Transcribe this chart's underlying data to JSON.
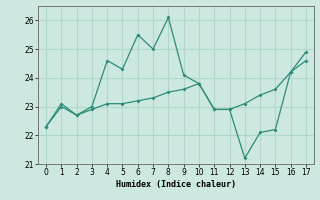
{
  "xlabel": "Humidex (Indice chaleur)",
  "x": [
    0,
    1,
    2,
    3,
    4,
    5,
    6,
    7,
    8,
    9,
    10,
    11,
    12,
    13,
    14,
    15,
    16,
    17
  ],
  "line1": [
    22.3,
    23.1,
    22.7,
    23.0,
    24.6,
    24.3,
    25.5,
    25.0,
    26.1,
    24.1,
    23.8,
    22.9,
    22.9,
    21.2,
    22.1,
    22.2,
    24.2,
    24.9
  ],
  "line2": [
    22.3,
    23.0,
    22.7,
    22.9,
    23.1,
    23.1,
    23.2,
    23.3,
    23.5,
    23.6,
    23.8,
    22.9,
    22.9,
    23.1,
    23.4,
    23.6,
    24.2,
    24.6
  ],
  "line_color": "#2e8b7a",
  "bg_color": "#cce8e0",
  "grid_color": "#b0d8cc",
  "ylim": [
    21.0,
    26.5
  ],
  "yticks": [
    21,
    22,
    23,
    24,
    25,
    26
  ],
  "xticks": [
    0,
    1,
    2,
    3,
    4,
    5,
    6,
    7,
    8,
    9,
    10,
    11,
    12,
    13,
    14,
    15,
    16,
    17
  ]
}
